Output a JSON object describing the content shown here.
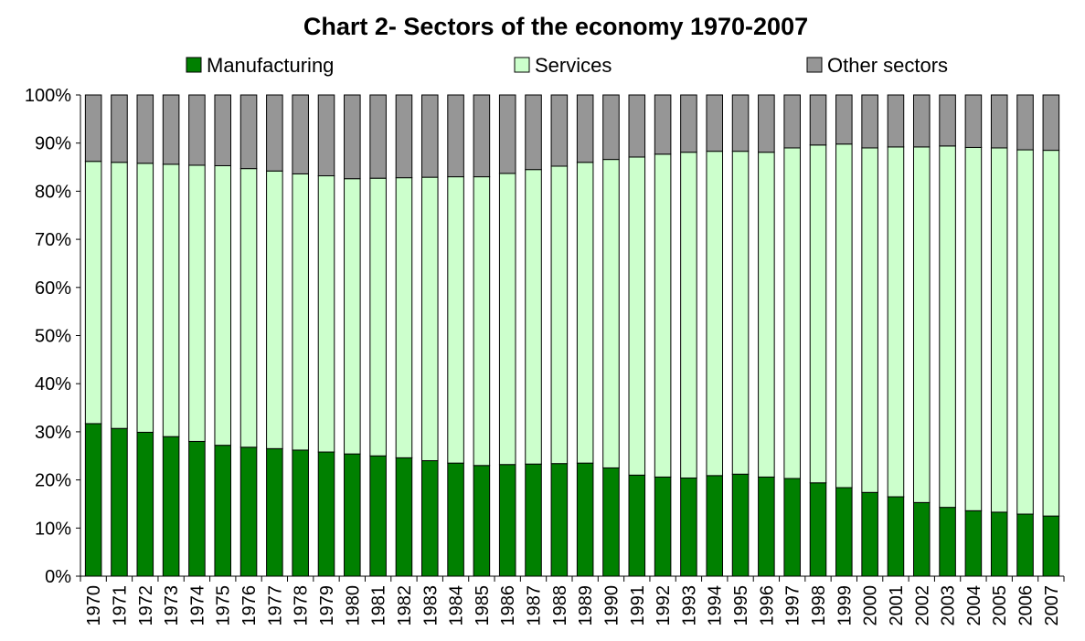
{
  "chart_data": {
    "type": "bar",
    "stacked": true,
    "percent": true,
    "title": "Chart 2- Sectors of the economy 1970-2007",
    "xlabel": "",
    "ylabel": "",
    "ylim": [
      0,
      100
    ],
    "yticks": [
      "0%",
      "10%",
      "20%",
      "30%",
      "40%",
      "50%",
      "60%",
      "70%",
      "80%",
      "90%",
      "100%"
    ],
    "grid": false,
    "legend_position": "top",
    "categories": [
      "1970",
      "1971",
      "1972",
      "1973",
      "1974",
      "1975",
      "1976",
      "1977",
      "1978",
      "1979",
      "1980",
      "1981",
      "1982",
      "1983",
      "1984",
      "1985",
      "1986",
      "1987",
      "1988",
      "1989",
      "1990",
      "1991",
      "1992",
      "1993",
      "1994",
      "1995",
      "1996",
      "1997",
      "1998",
      "1999",
      "2000",
      "2001",
      "2002",
      "2003",
      "2004",
      "2005",
      "2006",
      "2007"
    ],
    "series": [
      {
        "name": "Manufacturing",
        "color": "#008000",
        "values": [
          31.7,
          30.7,
          29.9,
          29.0,
          28.0,
          27.2,
          26.8,
          26.5,
          26.2,
          25.8,
          25.4,
          25.0,
          24.6,
          24.0,
          23.5,
          23.0,
          23.2,
          23.3,
          23.4,
          23.5,
          22.5,
          21.0,
          20.6,
          20.4,
          20.9,
          21.2,
          20.6,
          20.3,
          19.4,
          18.4,
          17.4,
          16.5,
          15.3,
          14.3,
          13.6,
          13.3,
          12.9,
          12.5
        ]
      },
      {
        "name": "Services",
        "color": "#CCFFCC",
        "values": [
          54.5,
          55.3,
          55.9,
          56.6,
          57.4,
          58.1,
          57.9,
          57.7,
          57.4,
          57.4,
          57.2,
          57.7,
          58.2,
          58.9,
          59.5,
          60.0,
          60.5,
          61.2,
          61.8,
          62.5,
          64.1,
          66.1,
          67.1,
          67.7,
          67.4,
          67.1,
          67.5,
          68.7,
          70.2,
          71.4,
          71.6,
          72.7,
          73.9,
          75.1,
          75.5,
          75.7,
          75.7,
          76.0
        ]
      },
      {
        "name": "Other sectors",
        "color": "#969696",
        "values": [
          13.8,
          14.0,
          14.2,
          14.4,
          14.6,
          14.7,
          15.3,
          15.8,
          16.4,
          16.8,
          17.4,
          17.3,
          17.2,
          17.1,
          17.0,
          17.0,
          16.3,
          15.5,
          14.8,
          14.0,
          13.4,
          12.9,
          12.3,
          11.9,
          11.7,
          11.7,
          11.9,
          11.0,
          10.4,
          10.2,
          11.0,
          10.8,
          10.8,
          10.6,
          10.9,
          11.0,
          11.4,
          11.5
        ]
      }
    ]
  }
}
